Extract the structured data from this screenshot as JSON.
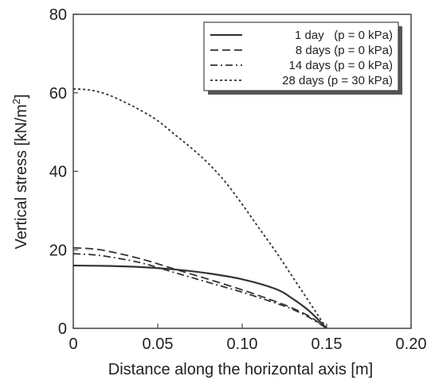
{
  "chart_data": {
    "type": "line",
    "xlabel": "Distance along the horizontal axis [m]",
    "ylabel_main": "Vertical stress [kN/m",
    "ylabel_sup": "2",
    "ylabel_close": "]",
    "xlim": [
      0,
      0.2
    ],
    "ylim": [
      0,
      80
    ],
    "x_ticks": [
      0,
      0.05,
      0.1,
      0.15,
      0.2
    ],
    "x_tick_labels": [
      "0",
      "0.05",
      "0.10",
      "0.15",
      "0.20"
    ],
    "y_ticks": [
      0,
      20,
      40,
      60,
      80
    ],
    "y_tick_labels": [
      "0",
      "20",
      "40",
      "60",
      "80"
    ],
    "grid": false,
    "legend_position": "top-right",
    "series": [
      {
        "name": "1 day   (p = 0 kPa)",
        "dash": "solid",
        "color": "#333333",
        "x": [
          0,
          0.02,
          0.04,
          0.06,
          0.08,
          0.1,
          0.12,
          0.13,
          0.14,
          0.15
        ],
        "y": [
          16,
          15.9,
          15.6,
          15,
          14,
          12.5,
          10,
          7.5,
          4.3,
          0
        ]
      },
      {
        "name": "8 days (p = 0 kPa)",
        "dash": "dashed",
        "color": "#333333",
        "x": [
          0,
          0.01,
          0.02,
          0.04,
          0.06,
          0.08,
          0.1,
          0.12,
          0.13,
          0.14,
          0.15
        ],
        "y": [
          20.5,
          20.3,
          19.7,
          17.7,
          15.1,
          12.5,
          9.8,
          6.8,
          5.1,
          3,
          0
        ]
      },
      {
        "name": "14 days (p = 0 kPa)",
        "dash": "dashdot",
        "color": "#333333",
        "x": [
          0,
          0.01,
          0.02,
          0.04,
          0.06,
          0.08,
          0.1,
          0.12,
          0.13,
          0.14,
          0.15
        ],
        "y": [
          19,
          18.8,
          18.3,
          16.7,
          14.2,
          11.7,
          9.2,
          6.4,
          4.8,
          2.7,
          0
        ]
      },
      {
        "name": "28 days (p = 30 kPa)",
        "dash": "dotted",
        "color": "#333333",
        "x": [
          0,
          0.01,
          0.02,
          0.03,
          0.04,
          0.05,
          0.06,
          0.07,
          0.08,
          0.09,
          0.1,
          0.11,
          0.12,
          0.13,
          0.14,
          0.15
        ],
        "y": [
          61,
          60.7,
          59.6,
          57.7,
          55.5,
          52.9,
          49.4,
          45.9,
          42,
          37.3,
          31.6,
          25.5,
          19.5,
          13,
          6.5,
          0
        ]
      }
    ]
  }
}
